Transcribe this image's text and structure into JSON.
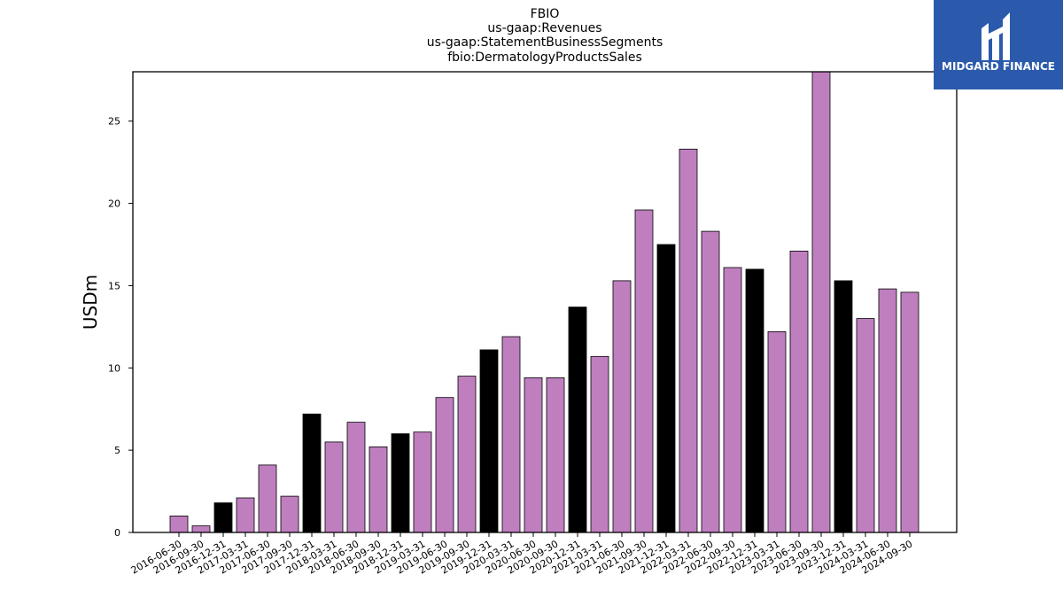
{
  "chart_data": {
    "type": "bar",
    "title_lines": [
      "FBIO",
      "us-gaap:Revenues",
      "us-gaap:StatementBusinessSegments",
      "fbio:DermatologyProductsSales"
    ],
    "ylabel": "USDm",
    "xlabel": "",
    "ylim": [
      0,
      28
    ],
    "yticks": [
      0,
      5,
      10,
      15,
      20,
      25
    ],
    "grid": false,
    "categories": [
      "2016-06-30",
      "2016-09-30",
      "2016-12-31",
      "2017-03-31",
      "2017-06-30",
      "2017-09-30",
      "2017-12-31",
      "2018-03-31",
      "2018-06-30",
      "2018-09-30",
      "2018-12-31",
      "2019-03-31",
      "2019-06-30",
      "2019-09-30",
      "2019-12-31",
      "2020-03-31",
      "2020-06-30",
      "2020-09-30",
      "2020-12-31",
      "2021-03-31",
      "2021-06-30",
      "2021-09-30",
      "2021-12-31",
      "2022-03-31",
      "2022-06-30",
      "2022-09-30",
      "2022-12-31",
      "2023-03-31",
      "2023-06-30",
      "2023-09-30",
      "2023-12-31",
      "2024-03-31",
      "2024-06-30",
      "2024-09-30"
    ],
    "values": [
      1.0,
      0.4,
      1.8,
      2.1,
      4.1,
      2.2,
      7.2,
      5.5,
      6.7,
      5.2,
      6.0,
      6.1,
      8.2,
      9.5,
      11.1,
      11.9,
      9.4,
      9.4,
      13.7,
      10.7,
      15.3,
      19.6,
      17.5,
      23.3,
      18.3,
      16.1,
      16.0,
      12.2,
      17.1,
      28.0,
      15.3,
      13.0,
      14.8,
      14.6
    ],
    "colors": {
      "quarter": "#bf7fbf",
      "year_end": "#000000",
      "edge": "#000000"
    }
  },
  "logo": {
    "text": "MIDGARD FINANCE",
    "background": "#2b5aad"
  }
}
